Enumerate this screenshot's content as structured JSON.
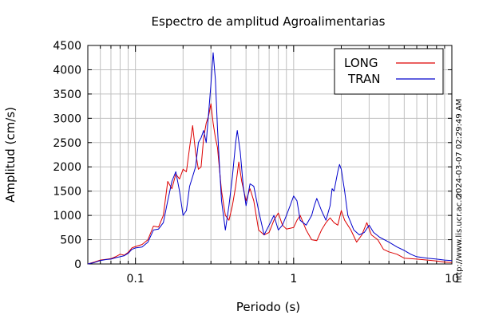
{
  "chart_data": {
    "type": "line",
    "title": "Espectro de amplitud Agroalimentarias",
    "xlabel": "Periodo (s)",
    "ylabel": "Amplitud (cm/s)",
    "x_scale": "log",
    "xlim": [
      0.05,
      10
    ],
    "ylim": [
      0,
      4500
    ],
    "x_ticks": [
      0.1,
      1,
      10
    ],
    "x_tick_labels": [
      "0.1",
      "1",
      "10"
    ],
    "y_ticks": [
      0,
      500,
      1000,
      1500,
      2000,
      2500,
      3000,
      3500,
      4000,
      4500
    ],
    "y_tick_labels": [
      "0",
      "500",
      "1000",
      "1500",
      "2000",
      "2500",
      "3000",
      "3500",
      "4000",
      "4500"
    ],
    "grid": true,
    "legend_position": "top-right",
    "timestamp": "2024-03-07 02:29:49 AM",
    "source_url": "http://www.lis.ucr.ac.cr",
    "series": [
      {
        "name": "LONG",
        "color": "#dd0000",
        "points": [
          [
            0.05,
            0
          ],
          [
            0.055,
            40
          ],
          [
            0.06,
            80
          ],
          [
            0.065,
            95
          ],
          [
            0.07,
            110
          ],
          [
            0.075,
            150
          ],
          [
            0.08,
            200
          ],
          [
            0.085,
            180
          ],
          [
            0.09,
            240
          ],
          [
            0.095,
            330
          ],
          [
            0.1,
            360
          ],
          [
            0.11,
            400
          ],
          [
            0.12,
            500
          ],
          [
            0.13,
            780
          ],
          [
            0.14,
            760
          ],
          [
            0.15,
            1000
          ],
          [
            0.16,
            1700
          ],
          [
            0.17,
            1550
          ],
          [
            0.18,
            1850
          ],
          [
            0.19,
            1750
          ],
          [
            0.2,
            1950
          ],
          [
            0.21,
            1900
          ],
          [
            0.22,
            2400
          ],
          [
            0.23,
            2850
          ],
          [
            0.24,
            2300
          ],
          [
            0.25,
            1950
          ],
          [
            0.26,
            2000
          ],
          [
            0.27,
            2600
          ],
          [
            0.28,
            2900
          ],
          [
            0.29,
            3050
          ],
          [
            0.3,
            3300
          ],
          [
            0.31,
            2900
          ],
          [
            0.32,
            2600
          ],
          [
            0.33,
            2400
          ],
          [
            0.35,
            1500
          ],
          [
            0.37,
            1000
          ],
          [
            0.39,
            900
          ],
          [
            0.41,
            1200
          ],
          [
            0.43,
            1600
          ],
          [
            0.45,
            2100
          ],
          [
            0.47,
            1700
          ],
          [
            0.5,
            1300
          ],
          [
            0.53,
            1550
          ],
          [
            0.56,
            1300
          ],
          [
            0.6,
            700
          ],
          [
            0.65,
            600
          ],
          [
            0.7,
            650
          ],
          [
            0.75,
            900
          ],
          [
            0.8,
            1050
          ],
          [
            0.85,
            800
          ],
          [
            0.9,
            720
          ],
          [
            1.0,
            750
          ],
          [
            1.05,
            900
          ],
          [
            1.1,
            1000
          ],
          [
            1.2,
            700
          ],
          [
            1.3,
            500
          ],
          [
            1.4,
            480
          ],
          [
            1.5,
            700
          ],
          [
            1.6,
            850
          ],
          [
            1.7,
            950
          ],
          [
            1.8,
            850
          ],
          [
            1.9,
            800
          ],
          [
            2.0,
            1100
          ],
          [
            2.1,
            900
          ],
          [
            2.3,
            700
          ],
          [
            2.5,
            450
          ],
          [
            2.7,
            600
          ],
          [
            2.9,
            850
          ],
          [
            3.1,
            600
          ],
          [
            3.4,
            500
          ],
          [
            3.7,
            300
          ],
          [
            4.0,
            250
          ],
          [
            4.5,
            200
          ],
          [
            5.0,
            120
          ],
          [
            6.0,
            100
          ],
          [
            7.0,
            80
          ],
          [
            8.0,
            60
          ],
          [
            9.0,
            40
          ],
          [
            10.0,
            30
          ]
        ]
      },
      {
        "name": "TRAN",
        "color": "#0000cc",
        "points": [
          [
            0.05,
            0
          ],
          [
            0.055,
            30
          ],
          [
            0.06,
            70
          ],
          [
            0.065,
            90
          ],
          [
            0.07,
            100
          ],
          [
            0.075,
            130
          ],
          [
            0.08,
            150
          ],
          [
            0.085,
            170
          ],
          [
            0.09,
            220
          ],
          [
            0.095,
            300
          ],
          [
            0.1,
            330
          ],
          [
            0.11,
            350
          ],
          [
            0.12,
            450
          ],
          [
            0.13,
            700
          ],
          [
            0.14,
            720
          ],
          [
            0.15,
            850
          ],
          [
            0.16,
            1300
          ],
          [
            0.17,
            1700
          ],
          [
            0.18,
            1900
          ],
          [
            0.19,
            1500
          ],
          [
            0.2,
            1000
          ],
          [
            0.21,
            1100
          ],
          [
            0.22,
            1600
          ],
          [
            0.23,
            1800
          ],
          [
            0.24,
            2000
          ],
          [
            0.25,
            2500
          ],
          [
            0.26,
            2600
          ],
          [
            0.27,
            2750
          ],
          [
            0.28,
            2500
          ],
          [
            0.29,
            3100
          ],
          [
            0.3,
            3700
          ],
          [
            0.31,
            4350
          ],
          [
            0.32,
            3800
          ],
          [
            0.33,
            2800
          ],
          [
            0.34,
            2000
          ],
          [
            0.35,
            1300
          ],
          [
            0.37,
            700
          ],
          [
            0.39,
            1200
          ],
          [
            0.41,
            1800
          ],
          [
            0.43,
            2500
          ],
          [
            0.44,
            2750
          ],
          [
            0.46,
            2300
          ],
          [
            0.48,
            1600
          ],
          [
            0.5,
            1200
          ],
          [
            0.53,
            1650
          ],
          [
            0.56,
            1600
          ],
          [
            0.6,
            1100
          ],
          [
            0.65,
            600
          ],
          [
            0.7,
            800
          ],
          [
            0.75,
            1000
          ],
          [
            0.8,
            700
          ],
          [
            0.85,
            800
          ],
          [
            0.9,
            1000
          ],
          [
            0.95,
            1200
          ],
          [
            1.0,
            1400
          ],
          [
            1.05,
            1300
          ],
          [
            1.1,
            900
          ],
          [
            1.2,
            800
          ],
          [
            1.3,
            1000
          ],
          [
            1.35,
            1200
          ],
          [
            1.4,
            1350
          ],
          [
            1.5,
            1100
          ],
          [
            1.6,
            900
          ],
          [
            1.7,
            1200
          ],
          [
            1.75,
            1550
          ],
          [
            1.8,
            1500
          ],
          [
            1.9,
            1900
          ],
          [
            1.95,
            2050
          ],
          [
            2.0,
            1950
          ],
          [
            2.1,
            1500
          ],
          [
            2.2,
            1000
          ],
          [
            2.4,
            700
          ],
          [
            2.6,
            600
          ],
          [
            2.8,
            650
          ],
          [
            3.0,
            800
          ],
          [
            3.2,
            650
          ],
          [
            3.5,
            550
          ],
          [
            4.0,
            450
          ],
          [
            4.5,
            350
          ],
          [
            5.0,
            280
          ],
          [
            5.5,
            200
          ],
          [
            6.0,
            150
          ],
          [
            7.0,
            120
          ],
          [
            8.0,
            100
          ],
          [
            9.0,
            80
          ],
          [
            10.0,
            70
          ]
        ]
      }
    ]
  }
}
